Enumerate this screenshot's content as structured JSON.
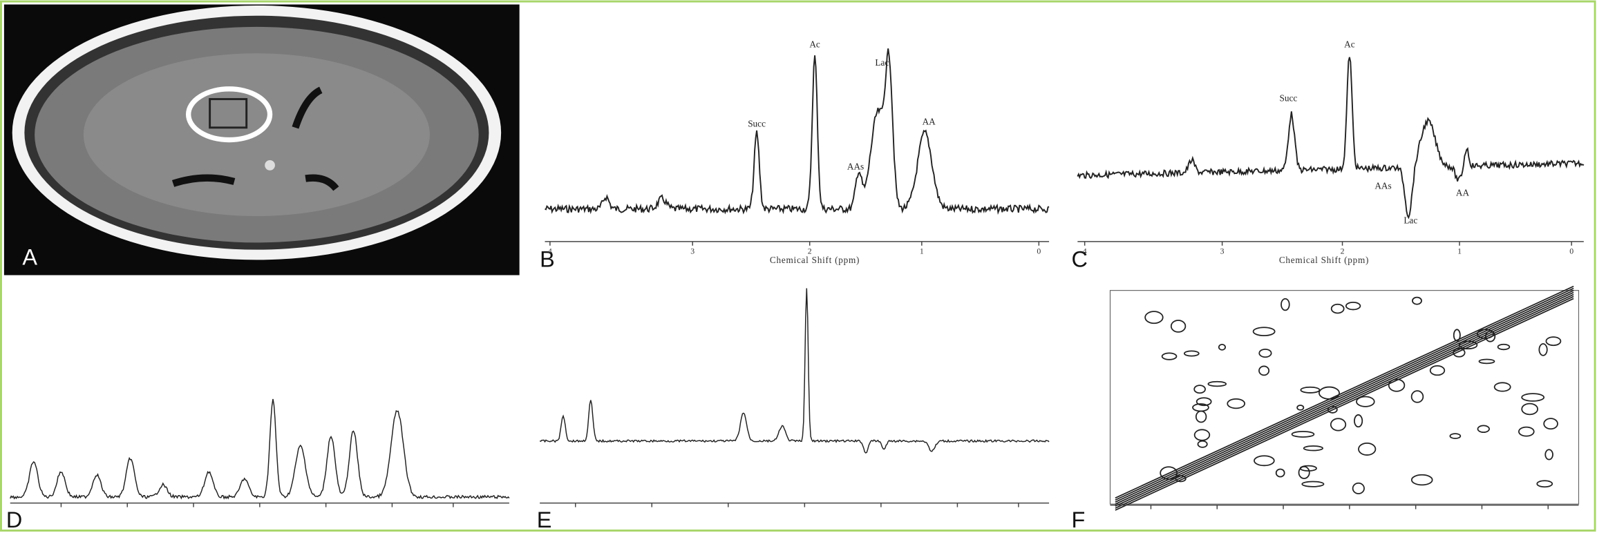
{
  "panels": [
    {
      "label": "A"
    },
    {
      "label": "B",
      "peaks": [
        "Succ",
        "Ac",
        "AAs",
        "Lac",
        "AA"
      ],
      "axis_label": "Chemical Shift (ppm)",
      "ticks": [
        "4",
        "3",
        "2",
        "1",
        "0"
      ]
    },
    {
      "label": "C",
      "peaks": [
        "Succ",
        "Ac",
        "AAs",
        "Lac",
        "AA"
      ],
      "axis_label": "Chemical Shift (ppm)",
      "ticks": [
        "4",
        "3",
        "2",
        "1",
        "0"
      ]
    },
    {
      "label": "D"
    },
    {
      "label": "E"
    },
    {
      "label": "F"
    }
  ]
}
